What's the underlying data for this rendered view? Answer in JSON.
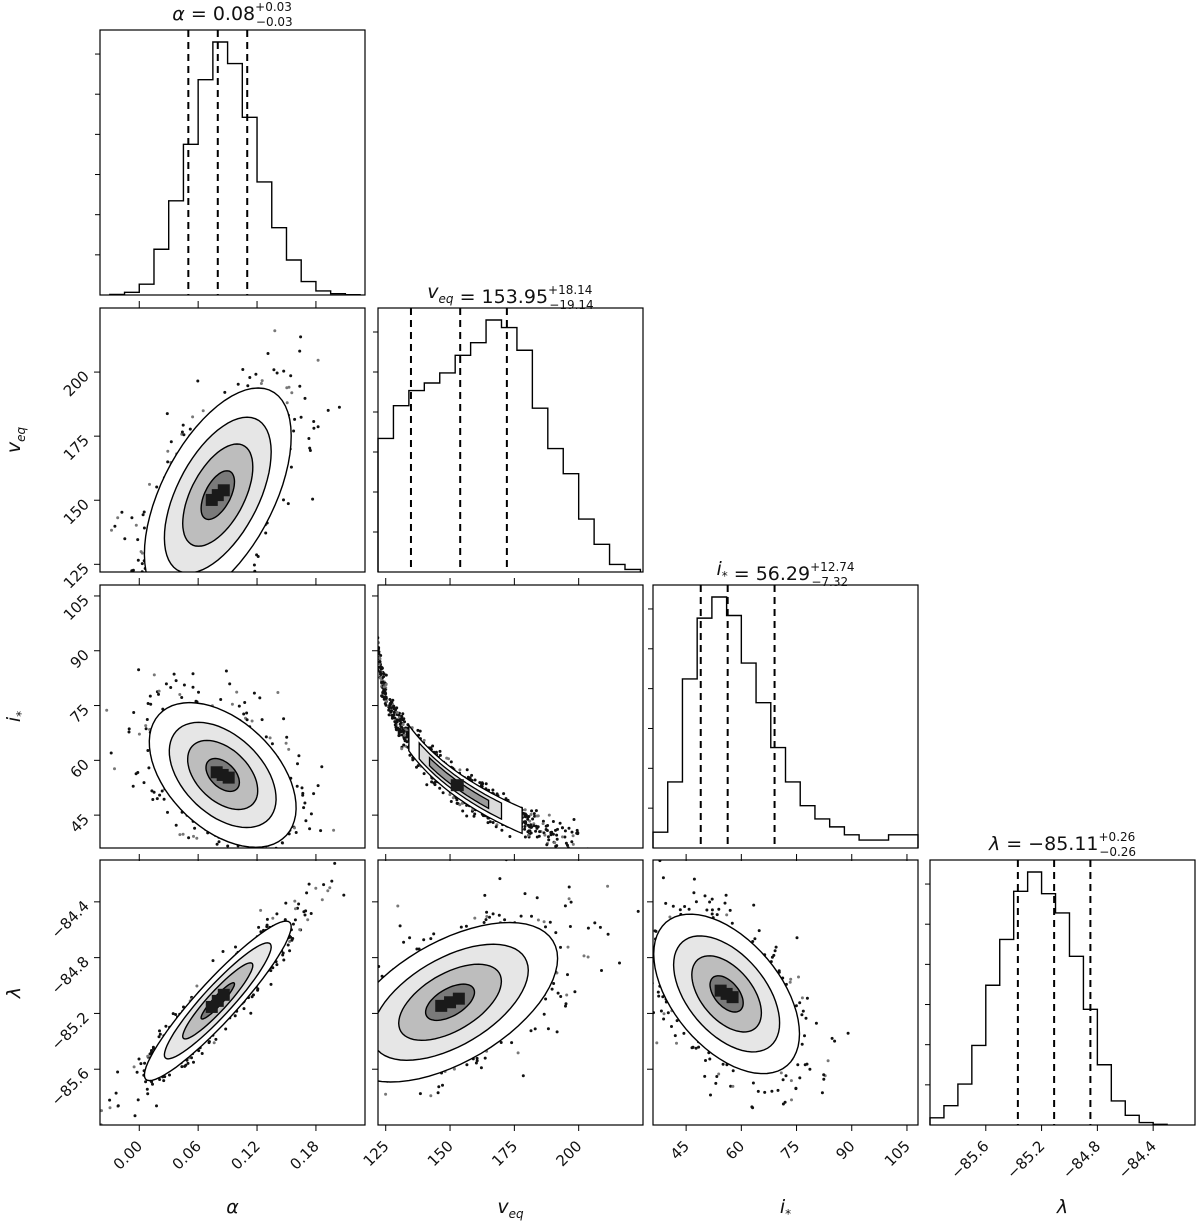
{
  "chart_data": {
    "type": "corner",
    "parameters": [
      {
        "key": "alpha",
        "label": "α",
        "ticks": [
          0.0,
          0.06,
          0.12,
          0.18
        ],
        "tick_labels": [
          "0.00",
          "0.06",
          "0.12",
          "0.18"
        ],
        "range": [
          -0.04,
          0.23
        ]
      },
      {
        "key": "veq",
        "label": "v",
        "label_sub": "eq",
        "ticks": [
          125,
          150,
          175,
          200
        ],
        "tick_labels": [
          "125",
          "150",
          "175",
          "200"
        ],
        "range": [
          122,
          225
        ]
      },
      {
        "key": "istar",
        "label": "i",
        "label_sub": "*",
        "ticks": [
          45,
          60,
          75,
          90,
          105
        ],
        "tick_labels": [
          "45",
          "60",
          "75",
          "90",
          "105"
        ],
        "range": [
          36,
          108
        ]
      },
      {
        "key": "lambda",
        "label": "λ",
        "ticks": [
          -85.6,
          -85.2,
          -84.8,
          -84.4
        ],
        "tick_labels": [
          "−85.6",
          "−85.2",
          "−84.8",
          "−84.4"
        ],
        "range": [
          -86.0,
          -84.1
        ]
      }
    ],
    "titles": [
      {
        "symbol": "α",
        "sub": "",
        "value": "0.08",
        "plus": "+0.03",
        "minus": "−0.03"
      },
      {
        "symbol": "v",
        "sub": "eq",
        "value": "153.95",
        "plus": "+18.14",
        "minus": "−19.14"
      },
      {
        "symbol": "i",
        "sub": "*",
        "value": "56.29",
        "plus": "+12.74",
        "minus": "−7.32"
      },
      {
        "symbol": "λ",
        "sub": "",
        "value": "−85.11",
        "plus": "+0.26",
        "minus": "−0.26"
      }
    ],
    "quantiles": {
      "alpha": [
        0.05,
        0.08,
        0.11
      ],
      "veq": [
        134.81,
        153.95,
        172.09
      ],
      "istar": [
        48.97,
        56.29,
        69.03
      ],
      "lambda": [
        -85.37,
        -85.11,
        -84.85
      ]
    },
    "histograms": {
      "alpha": {
        "bin_edges": [
          -0.03,
          -0.015,
          0.0,
          0.015,
          0.03,
          0.045,
          0.06,
          0.075,
          0.09,
          0.105,
          0.12,
          0.135,
          0.15,
          0.165,
          0.18,
          0.195,
          0.21,
          0.225
        ],
        "counts": [
          0.2,
          1,
          4,
          17,
          35,
          56,
          80,
          94,
          86,
          66,
          42,
          25,
          13,
          5,
          1.5,
          0.5,
          0.1
        ]
      },
      "veq": {
        "bin_edges": [
          122,
          128,
          134,
          140,
          146,
          152,
          158,
          164,
          170,
          176,
          182,
          188,
          194,
          200,
          206,
          212,
          218,
          224
        ],
        "counts": [
          53,
          66,
          72,
          75,
          79,
          86,
          91,
          100,
          97,
          88,
          65,
          49,
          39,
          21,
          11,
          3,
          1
        ]
      },
      "istar": {
        "bin_edges": [
          36,
          40,
          44,
          48,
          52,
          56,
          60,
          64,
          68,
          72,
          76,
          80,
          84,
          88,
          92,
          96,
          100,
          104,
          108
        ],
        "counts": [
          6,
          25,
          64,
          87,
          95,
          88,
          70,
          55,
          38,
          25,
          16,
          11,
          8,
          5,
          3,
          3,
          5,
          5
        ]
      },
      "lambda": {
        "bin_edges": [
          -86.0,
          -85.9,
          -85.8,
          -85.7,
          -85.6,
          -85.5,
          -85.4,
          -85.3,
          -85.2,
          -85.1,
          -85.0,
          -84.9,
          -84.8,
          -84.7,
          -84.6,
          -84.5,
          -84.4,
          -84.3
        ],
        "counts": [
          3,
          8,
          17,
          33,
          58,
          77,
          97,
          105,
          96,
          88,
          70,
          48,
          25,
          10,
          4,
          1,
          0.3
        ]
      }
    },
    "joint_2d": [
      {
        "x": "alpha",
        "y": "veq",
        "mean": [
          0.08,
          152
        ],
        "sd": [
          0.034,
          19
        ],
        "rho": 0.55
      },
      {
        "x": "alpha",
        "y": "istar",
        "mean": [
          0.085,
          56
        ],
        "sd": [
          0.034,
          9
        ],
        "rho": -0.45
      },
      {
        "x": "veq",
        "y": "istar",
        "curve": "banana"
      },
      {
        "x": "alpha",
        "y": "lambda",
        "mean": [
          0.08,
          -85.11
        ],
        "sd": [
          0.034,
          0.26
        ],
        "rho": 0.93
      },
      {
        "x": "veq",
        "y": "lambda",
        "mean": [
          150,
          -85.12
        ],
        "sd": [
          19,
          0.26
        ],
        "rho": 0.55
      },
      {
        "x": "istar",
        "y": "lambda",
        "mean": [
          56,
          -85.06
        ],
        "sd": [
          9,
          0.26
        ],
        "rho": -0.5
      }
    ],
    "contour_levels": [
      "0.5σ",
      "1σ",
      "1.5σ",
      "2σ"
    ],
    "grid": false,
    "legend": "none"
  }
}
